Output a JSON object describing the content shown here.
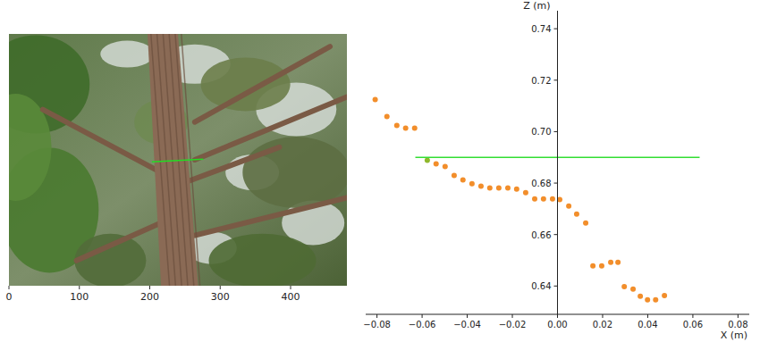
{
  "chart_data": [
    {
      "type": "image",
      "xlim": [
        0,
        480
      ],
      "xticks": [
        0,
        100,
        200,
        300,
        400
      ],
      "ylim": [
        360,
        0
      ],
      "tick_labels": "x",
      "series": [
        {
          "type": "line",
          "color": "#22dd22",
          "x": [
            203,
            276
          ],
          "values": [
            183,
            179
          ]
        }
      ]
    },
    {
      "type": "scatter",
      "x_label": "X (m)",
      "y_label": "Z (m)",
      "xlim": [
        -0.085,
        0.085
      ],
      "xticks": [
        {
          "value": -0.08,
          "label": "−0.08"
        },
        {
          "value": -0.06,
          "label": "−0.06"
        },
        {
          "value": -0.04,
          "label": "−0.04"
        },
        {
          "value": -0.02,
          "label": "−0.02"
        },
        {
          "value": 0,
          "label": "0.00"
        },
        0.02,
        0.04,
        0.06,
        0.08
      ],
      "ylim": [
        0.629,
        0.747
      ],
      "yticks": [
        0.64,
        0.66,
        0.68,
        {
          "value": 0.7,
          "label": "0.70"
        },
        0.72,
        0.74
      ],
      "series": [
        {
          "type": "scatter",
          "marker": "circle",
          "colors": [
            "#f28e2b",
            "#f28e2b",
            "#f28e2b",
            "#f28e2b",
            "#f28e2b",
            "#8fb82c",
            "#f28e2b",
            "#f28e2b",
            "#f28e2b",
            "#f28e2b",
            "#f28e2b",
            "#f28e2b",
            "#f28e2b",
            "#f28e2b",
            "#f28e2b",
            "#f28e2b",
            "#f28e2b",
            "#f28e2b",
            "#f28e2b",
            "#f28e2b",
            "#f28e2b",
            "#f28e2b",
            "#f28e2b",
            "#f28e2b",
            "#f28e2b",
            "#f28e2b",
            "#f28e2b",
            "#f28e2b",
            "#f28e2b",
            "#f28e2b",
            "#f28e2b",
            "#f28e2b",
            "#f28e2b",
            "#f28e2b"
          ],
          "x": [
            -0.0808,
            -0.0756,
            -0.0712,
            -0.0673,
            -0.0633,
            -0.0577,
            -0.0538,
            -0.0498,
            -0.0458,
            -0.0419,
            -0.0379,
            -0.0339,
            -0.03,
            -0.026,
            -0.022,
            -0.0181,
            -0.0141,
            -0.0101,
            -0.0062,
            -0.0022,
            0.001,
            0.005,
            0.0085,
            0.0125,
            0.0157,
            0.0196,
            0.0236,
            0.0268,
            0.0296,
            0.0335,
            0.0367,
            0.0399,
            0.0435,
            0.0474
          ],
          "values": [
            0.7125,
            0.7059,
            0.7024,
            0.7014,
            0.7014,
            0.6889,
            0.6875,
            0.6864,
            0.683,
            0.6812,
            0.6798,
            0.6788,
            0.6781,
            0.6781,
            0.6781,
            0.6777,
            0.6763,
            0.6739,
            0.6739,
            0.6739,
            0.6736,
            0.6711,
            0.668,
            0.6645,
            0.6478,
            0.6478,
            0.6492,
            0.6492,
            0.6398,
            0.6388,
            0.636,
            0.6346,
            0.6346,
            0.6363
          ]
        },
        {
          "type": "line",
          "color": "#33dd33",
          "line_style": "solid",
          "x": [
            -0.063,
            0.063
          ],
          "values": [
            0.69,
            0.69
          ]
        }
      ]
    }
  ]
}
